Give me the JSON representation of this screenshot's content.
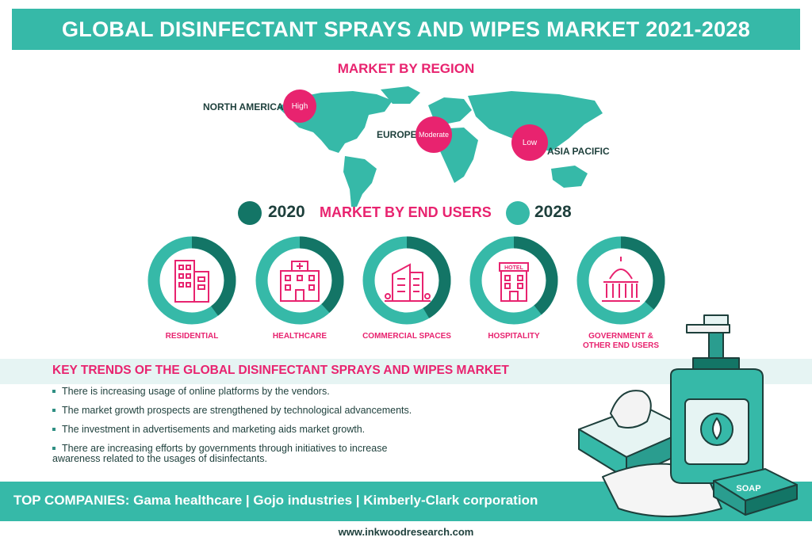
{
  "header": {
    "title": "GLOBAL DISINFECTANT SPRAYS AND WIPES MARKET 2021-2028"
  },
  "region_section": {
    "title": "MARKET BY REGION",
    "regions": [
      {
        "name": "NORTH AMERICA",
        "level": "High"
      },
      {
        "name": "EUROPE",
        "level": "Moderate"
      },
      {
        "name": "ASIA PACIFIC",
        "level": "Low"
      }
    ]
  },
  "end_users_section": {
    "legend": {
      "left_year": "2020",
      "right_year": "2028",
      "title": "MARKET BY END USERS",
      "color_2020": "#137566",
      "color_2028": "#36b9a8"
    },
    "items": [
      {
        "label": "RESIDENTIAL",
        "icon": "residential-building-icon"
      },
      {
        "label": "HEALTHCARE",
        "icon": "hospital-icon"
      },
      {
        "label": "COMMERCIAL SPACES",
        "icon": "office-building-icon"
      },
      {
        "label": "HOSPITALITY",
        "icon": "hotel-icon"
      },
      {
        "label": "GOVERNMENT & OTHER END USERS",
        "icon": "capitol-icon"
      }
    ]
  },
  "trends_section": {
    "title": "KEY TRENDS OF THE GLOBAL DISINFECTANT SPRAYS AND WIPES MARKET",
    "items": [
      "There is increasing usage of online platforms by the vendors.",
      "The market growth prospects are strengthened by technological advancements.",
      "The investment in advertisements and marketing aids market growth.",
      "There are increasing efforts by governments through initiatives to increase awareness related to the usages of disinfectants."
    ]
  },
  "footer": {
    "companies": "TOP COMPANIES: Gama healthcare | Gojo industries | Kimberly-Clark corporation",
    "url": "www.inkwoodresearch.com"
  },
  "illustration": {
    "soap_label": "SOAP",
    "icon": "sanitizer-and-wipes-illustration"
  },
  "colors": {
    "teal": "#36b9a8",
    "dark_teal": "#137566",
    "pink": "#e8236f"
  },
  "chart_data": [
    {
      "type": "table",
      "title": "MARKET BY REGION",
      "categories": [
        "NORTH AMERICA",
        "EUROPE",
        "ASIA PACIFIC"
      ],
      "values": [
        "High",
        "Moderate",
        "Low"
      ]
    },
    {
      "type": "pie",
      "title": "MARKET BY END USERS",
      "categories": [
        "RESIDENTIAL",
        "HEALTHCARE",
        "COMMERCIAL SPACES",
        "HOSPITALITY",
        "GOVERNMENT & OTHER END USERS"
      ],
      "legend": [
        "2020",
        "2028"
      ]
    }
  ]
}
